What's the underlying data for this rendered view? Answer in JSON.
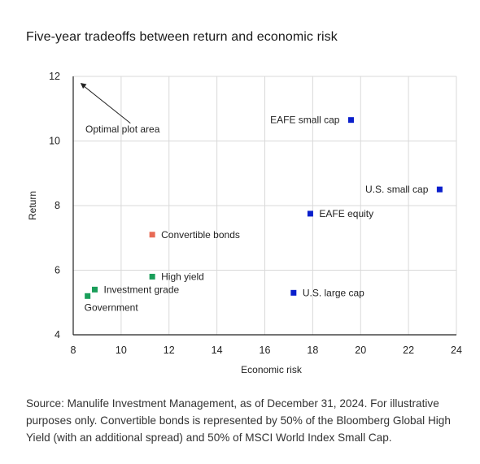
{
  "title": "Five-year tradeoffs between return and economic risk",
  "source": "Source: Manulife Investment Management, as of December 31, 2024. For illustrative purposes only. Convertible bonds is represented by 50% of the Bloomberg Global High Yield (with an additional spread) and 50% of MSCI World Index Small Cap.",
  "colors": {
    "blue": "#0a1fcc",
    "green": "#1a9e5a",
    "salmon": "#e86a55",
    "grid": "#d9d9d9",
    "axis": "#222222"
  },
  "chart_data": {
    "type": "scatter",
    "title": "Five-year tradeoffs between return and economic risk",
    "xlabel": "Economic risk",
    "ylabel": "Return",
    "xlim": [
      8,
      24
    ],
    "ylim": [
      4,
      12
    ],
    "xticks": [
      8,
      10,
      12,
      14,
      16,
      18,
      20,
      22,
      24
    ],
    "yticks": [
      4,
      6,
      8,
      10,
      12
    ],
    "grid": true,
    "annotation": {
      "text": "Optimal plot area",
      "arrow_from": [
        9.2,
        10.6
      ],
      "arrow_to": [
        8.3,
        11.8
      ]
    },
    "points": [
      {
        "label": "EAFE small cap",
        "x": 19.6,
        "y": 10.65,
        "color": "blue",
        "label_side": "left"
      },
      {
        "label": "U.S. small cap",
        "x": 23.3,
        "y": 8.5,
        "color": "blue",
        "label_side": "left"
      },
      {
        "label": "EAFE equity",
        "x": 17.9,
        "y": 7.75,
        "color": "blue",
        "label_side": "right"
      },
      {
        "label": "U.S. large cap",
        "x": 17.2,
        "y": 5.3,
        "color": "blue",
        "label_side": "right"
      },
      {
        "label": "Convertible bonds",
        "x": 11.3,
        "y": 7.1,
        "color": "salmon",
        "label_side": "right"
      },
      {
        "label": "High yield",
        "x": 11.3,
        "y": 5.8,
        "color": "green",
        "label_side": "right"
      },
      {
        "label": "Investment grade",
        "x": 8.9,
        "y": 5.4,
        "color": "green",
        "label_side": "right"
      },
      {
        "label": "Government",
        "x": 8.6,
        "y": 5.2,
        "color": "green",
        "label_side": "below"
      }
    ]
  }
}
